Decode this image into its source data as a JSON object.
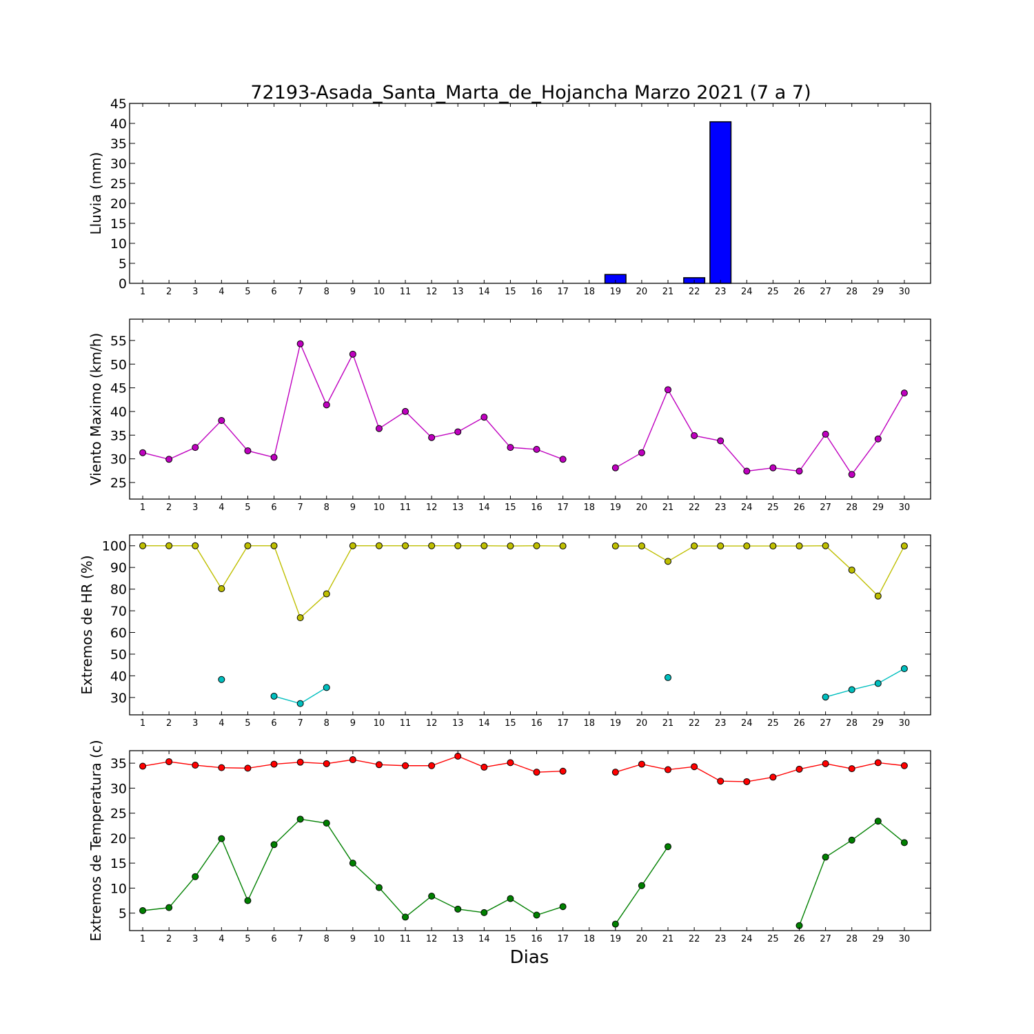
{
  "chart_data": {
    "title": "72193-Asada_Santa_Marta_de_Hojancha Marzo 2021  (7 a 7)",
    "xlabel": "Dias",
    "x": [
      1,
      2,
      3,
      4,
      5,
      6,
      7,
      8,
      9,
      10,
      11,
      12,
      13,
      14,
      15,
      16,
      17,
      18,
      19,
      20,
      21,
      22,
      23,
      24,
      25,
      26,
      27,
      28,
      29,
      30
    ],
    "panels": [
      {
        "type": "bar",
        "ylabel": "Lluvia (mm)",
        "ylim": [
          0,
          45
        ],
        "yticks": [
          0,
          5,
          10,
          15,
          20,
          25,
          30,
          35,
          40,
          45
        ],
        "series": [
          {
            "color": "#0000ff",
            "values": [
              0,
              0,
              0,
              0,
              0,
              0,
              0,
              0,
              0,
              0,
              0,
              0,
              0,
              0,
              0,
              0,
              0,
              0,
              2.2,
              0,
              0,
              1.4,
              40.4,
              0,
              0,
              0,
              0,
              0,
              0,
              0
            ]
          }
        ]
      },
      {
        "type": "line",
        "ylabel": "Viento Maximo (km/h)",
        "ylim": [
          21.5,
          59.5
        ],
        "yticks": [
          25,
          30,
          35,
          40,
          45,
          50,
          55
        ],
        "series": [
          {
            "color": "#bf00bf",
            "values": [
              31.3,
              29.9,
              32.4,
              38.1,
              31.7,
              30.3,
              54.3,
              41.4,
              52.1,
              36.4,
              40.0,
              34.5,
              35.7,
              38.8,
              32.4,
              32.0,
              29.9,
              null,
              28.1,
              31.3,
              44.6,
              34.9,
              33.8,
              27.4,
              28.1,
              27.4,
              35.2,
              26.7,
              34.2,
              43.9
            ]
          }
        ]
      },
      {
        "type": "line",
        "ylabel": "Extremos de HR (%)",
        "ylim": [
          22,
          105
        ],
        "yticks": [
          30,
          40,
          50,
          60,
          70,
          80,
          90,
          100
        ],
        "series": [
          {
            "color": "#bfbf00",
            "values": [
              100,
              100,
              100,
              80.2,
              100,
              100,
              66.8,
              77.8,
              100,
              100,
              100,
              100,
              100,
              100,
              99.9,
              100,
              99.9,
              null,
              99.9,
              99.9,
              92.8,
              99.9,
              99.9,
              99.9,
              99.9,
              99.9,
              100,
              88.8,
              76.8,
              99.9
            ]
          },
          {
            "color": "#00bfbf",
            "values": [
              null,
              null,
              null,
              38.3,
              null,
              30.6,
              27.2,
              34.6,
              null,
              null,
              null,
              null,
              null,
              null,
              null,
              null,
              null,
              null,
              null,
              null,
              39.2,
              null,
              null,
              null,
              null,
              null,
              30.2,
              33.6,
              36.5,
              43.3
            ]
          }
        ]
      },
      {
        "type": "line",
        "ylabel": "Extremos de Temperatura (c)",
        "ylim": [
          1.5,
          37.5
        ],
        "yticks": [
          5,
          10,
          15,
          20,
          25,
          30,
          35
        ],
        "series": [
          {
            "color": "#ff0000",
            "values": [
              34.4,
              35.3,
              34.6,
              34.1,
              34.0,
              34.8,
              35.2,
              34.9,
              35.7,
              34.7,
              34.5,
              34.5,
              36.4,
              34.2,
              35.1,
              33.2,
              33.4,
              null,
              33.2,
              34.8,
              33.7,
              34.3,
              31.4,
              31.3,
              32.2,
              33.8,
              34.9,
              33.9,
              35.1,
              34.5
            ]
          },
          {
            "color": "#008000",
            "values": [
              5.5,
              6.1,
              12.3,
              19.9,
              7.5,
              18.7,
              23.8,
              23.0,
              15.0,
              10.1,
              4.2,
              8.4,
              5.8,
              5.1,
              7.9,
              4.6,
              6.3,
              null,
              2.8,
              10.5,
              18.3,
              null,
              null,
              null,
              null,
              2.5,
              16.2,
              19.6,
              23.4,
              19.1
            ]
          }
        ]
      }
    ]
  }
}
